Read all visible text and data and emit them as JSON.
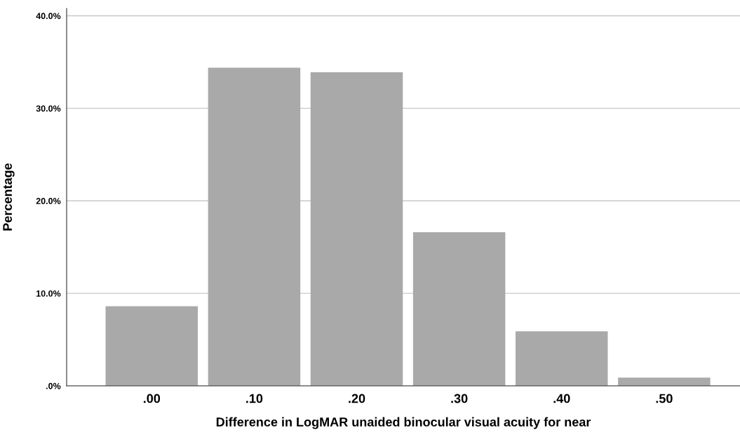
{
  "chart_data": {
    "type": "bar",
    "xlabel": "Difference in LogMAR unaided binocular visual acuity for near",
    "ylabel": "Percentage",
    "categories": [
      ".00",
      ".10",
      ".20",
      ".30",
      ".40",
      ".50"
    ],
    "values": [
      8.6,
      34.4,
      33.9,
      16.6,
      5.9,
      0.9
    ],
    "color": "#a9a9a9",
    "ylim": [
      0,
      40.8
    ],
    "yticks": [
      {
        "value": 0,
        "label": ".0%"
      },
      {
        "value": 10,
        "label": "10.0%"
      },
      {
        "value": 20,
        "label": "20.0%"
      },
      {
        "value": 30,
        "label": "30.0%"
      },
      {
        "value": 40,
        "label": "40.0%"
      }
    ],
    "grid": "y"
  }
}
